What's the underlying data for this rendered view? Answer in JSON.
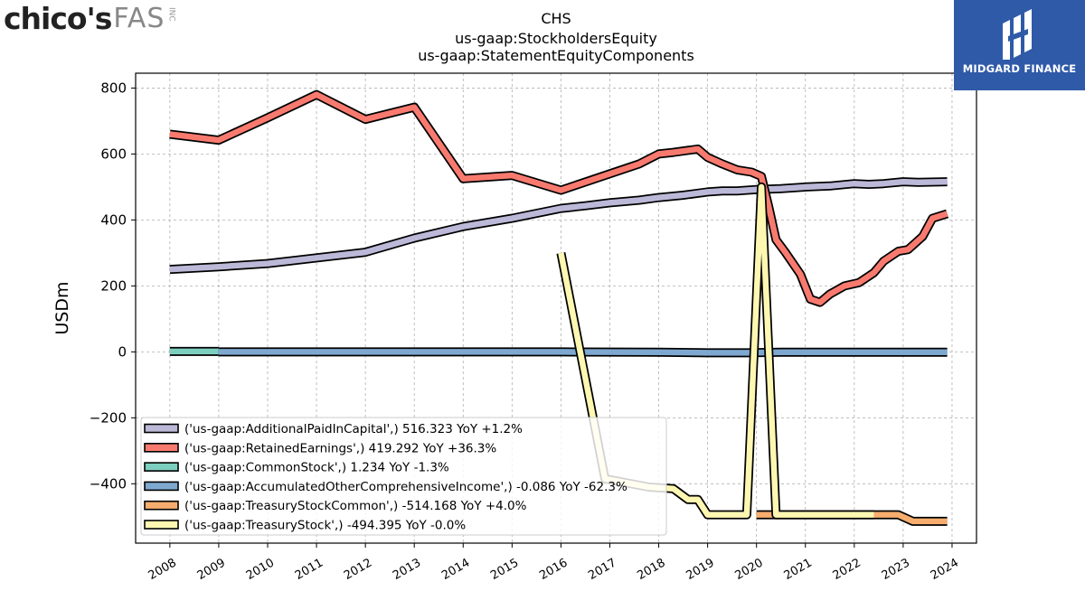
{
  "header": {
    "left_logo": {
      "brand": "chico's",
      "sub": "FAS",
      "suffix": "INC"
    },
    "right_logo": {
      "name": "MIDGARD FINANCE"
    }
  },
  "chart_data": {
    "type": "line",
    "title": [
      "CHS",
      "us-gaap:StockholdersEquity",
      "us-gaap:StatementEquityComponents"
    ],
    "xlabel": "",
    "ylabel": "USDm",
    "xlim": [
      2007.3,
      2024.5
    ],
    "ylim": [
      -580,
      845
    ],
    "x_ticks": [
      2008,
      2009,
      2010,
      2011,
      2012,
      2013,
      2014,
      2015,
      2016,
      2017,
      2018,
      2019,
      2020,
      2021,
      2022,
      2023,
      2024
    ],
    "y_ticks": [
      -400,
      -200,
      0,
      200,
      400,
      600,
      800
    ],
    "y_tick_labels": [
      "−400",
      "−200",
      "0",
      "200",
      "400",
      "600",
      "800"
    ],
    "grid": true,
    "legend_position": "lower-left",
    "series": [
      {
        "name": "('us-gaap:AdditionalPaidInCapital',) 516.323 YoY +1.2%",
        "color": "#bcb8d8",
        "points": [
          [
            2008.0,
            250
          ],
          [
            2009.0,
            258
          ],
          [
            2010.0,
            268
          ],
          [
            2011.0,
            285
          ],
          [
            2012.0,
            302
          ],
          [
            2013.0,
            345
          ],
          [
            2014.0,
            380
          ],
          [
            2015.0,
            405
          ],
          [
            2016.0,
            435
          ],
          [
            2016.5,
            443
          ],
          [
            2017.0,
            452
          ],
          [
            2017.6,
            460
          ],
          [
            2018.0,
            468
          ],
          [
            2018.5,
            475
          ],
          [
            2019.0,
            485
          ],
          [
            2019.3,
            488
          ],
          [
            2019.6,
            488
          ],
          [
            2020.0,
            492
          ],
          [
            2020.5,
            495
          ],
          [
            2021.0,
            500
          ],
          [
            2021.5,
            503
          ],
          [
            2022.0,
            510
          ],
          [
            2022.3,
            508
          ],
          [
            2022.6,
            510
          ],
          [
            2023.0,
            516
          ],
          [
            2023.3,
            514
          ],
          [
            2023.9,
            516
          ]
        ]
      },
      {
        "name": "('us-gaap:RetainedEarnings',) 419.292 YoY +36.3%",
        "color": "#f87a6f",
        "points": [
          [
            2008.0,
            660
          ],
          [
            2009.0,
            642
          ],
          [
            2010.0,
            710
          ],
          [
            2011.0,
            780
          ],
          [
            2012.0,
            705
          ],
          [
            2013.0,
            742
          ],
          [
            2014.0,
            525
          ],
          [
            2015.0,
            535
          ],
          [
            2016.0,
            490
          ],
          [
            2016.5,
            515
          ],
          [
            2017.0,
            540
          ],
          [
            2017.6,
            570
          ],
          [
            2018.0,
            600
          ],
          [
            2018.3,
            605
          ],
          [
            2018.8,
            615
          ],
          [
            2019.0,
            590
          ],
          [
            2019.3,
            570
          ],
          [
            2019.6,
            552
          ],
          [
            2019.9,
            545
          ],
          [
            2020.1,
            532
          ],
          [
            2020.25,
            440
          ],
          [
            2020.4,
            340
          ],
          [
            2020.6,
            300
          ],
          [
            2020.9,
            235
          ],
          [
            2021.1,
            160
          ],
          [
            2021.3,
            150
          ],
          [
            2021.5,
            175
          ],
          [
            2021.8,
            200
          ],
          [
            2022.1,
            210
          ],
          [
            2022.4,
            240
          ],
          [
            2022.6,
            275
          ],
          [
            2022.9,
            305
          ],
          [
            2023.1,
            310
          ],
          [
            2023.4,
            350
          ],
          [
            2023.6,
            405
          ],
          [
            2023.9,
            419
          ]
        ]
      },
      {
        "name": "('us-gaap:CommonStock',) 1.234 YoY -1.3%",
        "color": "#7ccfbf",
        "points": [
          [
            2008.0,
            1.3
          ],
          [
            2009.0,
            1.3
          ]
        ]
      },
      {
        "name": "('us-gaap:AccumulatedOtherComprehensiveIncome',) -0.086 YoY -62.3%",
        "color": "#7ea8cf",
        "points": [
          [
            2009.0,
            0
          ],
          [
            2014.0,
            0
          ],
          [
            2016.0,
            0
          ],
          [
            2018.0,
            -1
          ],
          [
            2019.0,
            -3
          ],
          [
            2019.8,
            -3
          ],
          [
            2020.5,
            -1
          ],
          [
            2022.0,
            -1
          ],
          [
            2023.9,
            -1
          ]
        ]
      },
      {
        "name": "('us-gaap:TreasuryStockCommon',) -514.168 YoY +4.0%",
        "color": "#f6ad6e",
        "points": [
          [
            2020.0,
            -494
          ],
          [
            2022.4,
            -494
          ],
          [
            2022.9,
            -494
          ],
          [
            2023.2,
            -514
          ],
          [
            2023.9,
            -514
          ]
        ]
      },
      {
        "name": "('us-gaap:TreasuryStock',) -494.395 YoY -0.0%",
        "color": "#fdf7b2",
        "points": [
          [
            2016.0,
            300
          ],
          [
            2016.9,
            -385
          ],
          [
            2017.8,
            -410
          ],
          [
            2018.3,
            -415
          ],
          [
            2018.6,
            -448
          ],
          [
            2018.8,
            -448
          ],
          [
            2019.0,
            -494
          ],
          [
            2019.8,
            -494
          ],
          [
            2020.1,
            500
          ],
          [
            2020.4,
            -494
          ],
          [
            2021.0,
            -494
          ],
          [
            2022.0,
            -494
          ],
          [
            2022.4,
            -494
          ]
        ]
      }
    ]
  }
}
